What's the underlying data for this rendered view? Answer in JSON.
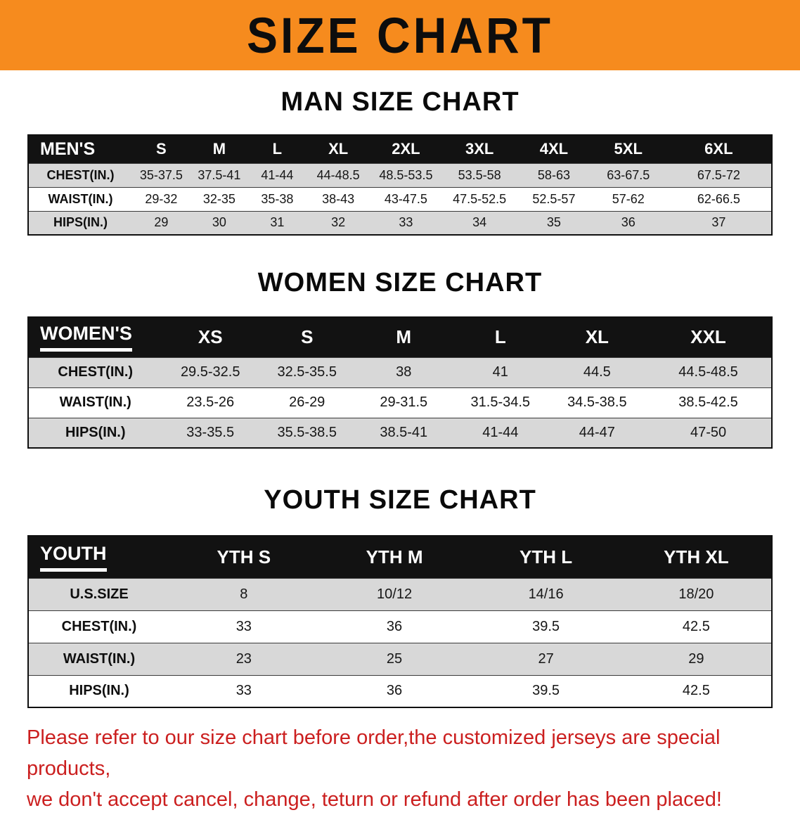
{
  "banner": {
    "title": "SIZE CHART"
  },
  "colors": {
    "banner_orange": "#F68B1E",
    "header_black": "#121212",
    "row_gray": "#D8D8D8",
    "disclaimer_red": "#CB1F1F"
  },
  "sections": [
    {
      "heading": "MAN SIZE CHART",
      "table": {
        "header": [
          "MEN'S",
          "S",
          "M",
          "L",
          "XL",
          "2XL",
          "3XL",
          "4XL",
          "5XL",
          "6XL"
        ],
        "rows": [
          {
            "label": "CHEST(IN.)",
            "values": [
              "35-37.5",
              "37.5-41",
              "41-44",
              "44-48.5",
              "48.5-53.5",
              "53.5-58",
              "58-63",
              "63-67.5",
              "67.5-72"
            ]
          },
          {
            "label": "WAIST(IN.)",
            "values": [
              "29-32",
              "32-35",
              "35-38",
              "38-43",
              "43-47.5",
              "47.5-52.5",
              "52.5-57",
              "57-62",
              "62-66.5"
            ]
          },
          {
            "label": "HIPS(IN.)",
            "values": [
              "29",
              "30",
              "31",
              "32",
              "33",
              "34",
              "35",
              "36",
              "37"
            ]
          }
        ]
      }
    },
    {
      "heading": "WOMEN SIZE CHART",
      "table": {
        "header": [
          "WOMEN'S",
          "XS",
          "S",
          "M",
          "L",
          "XL",
          "XXL"
        ],
        "rows": [
          {
            "label": "CHEST(IN.)",
            "values": [
              "29.5-32.5",
              "32.5-35.5",
              "38",
              "41",
              "44.5",
              "44.5-48.5"
            ]
          },
          {
            "label": "WAIST(IN.)",
            "values": [
              "23.5-26",
              "26-29",
              "29-31.5",
              "31.5-34.5",
              "34.5-38.5",
              "38.5-42.5"
            ]
          },
          {
            "label": "HIPS(IN.)",
            "values": [
              "33-35.5",
              "35.5-38.5",
              "38.5-41",
              "41-44",
              "44-47",
              "47-50"
            ]
          }
        ]
      }
    },
    {
      "heading": "YOUTH SIZE CHART",
      "table": {
        "header": [
          "YOUTH",
          "YTH S",
          "YTH M",
          "YTH L",
          "YTH XL"
        ],
        "rows": [
          {
            "label": "U.S.SIZE",
            "values": [
              "8",
              "10/12",
              "14/16",
              "18/20"
            ]
          },
          {
            "label": "CHEST(IN.)",
            "values": [
              "33",
              "36",
              "39.5",
              "42.5"
            ]
          },
          {
            "label": "WAIST(IN.)",
            "values": [
              "23",
              "25",
              "27",
              "29"
            ]
          },
          {
            "label": "HIPS(IN.)",
            "values": [
              "33",
              "36",
              "39.5",
              "42.5"
            ]
          }
        ]
      }
    }
  ],
  "disclaimer": {
    "lines": [
      "Please refer to our size chart before order,the customized jerseys are special products,",
      "we don't accept cancel, change, teturn or refund after order has been placed!"
    ]
  }
}
